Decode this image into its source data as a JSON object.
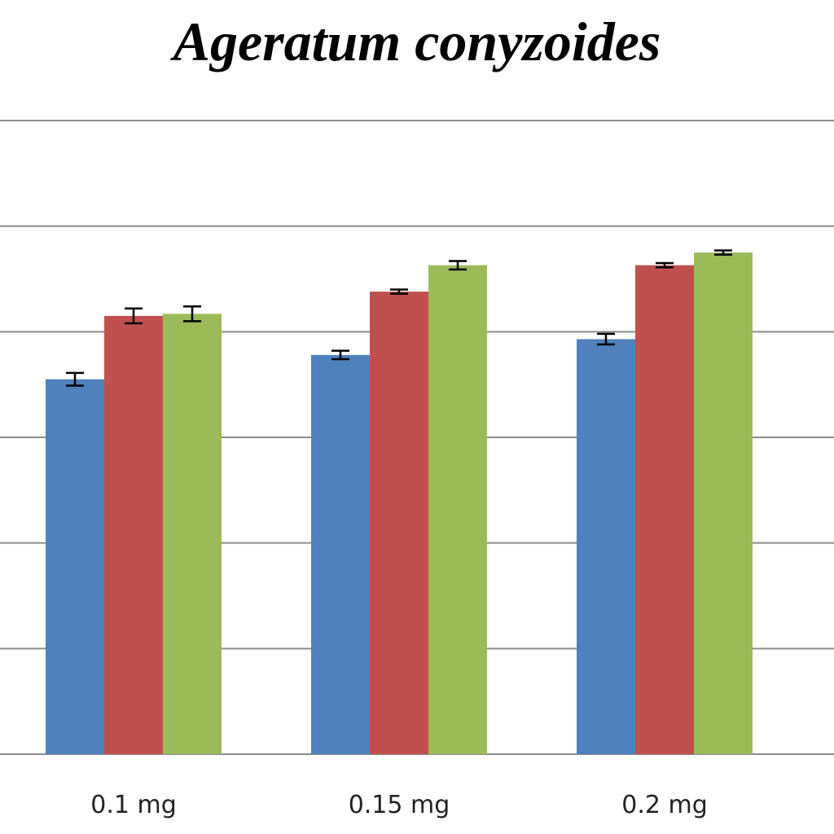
{
  "chart_data": {
    "type": "bar",
    "title": "Ageratum conyzoides",
    "xlabel": "",
    "ylabel": "",
    "categories": [
      "0.1 mg",
      "0.15 mg",
      "0.2 mg"
    ],
    "series": [
      {
        "color": "#4f81bd",
        "values": [
          3.55,
          3.78,
          3.93
        ],
        "errors": [
          0.06,
          0.04,
          0.05
        ]
      },
      {
        "color": "#c0504d",
        "values": [
          4.15,
          4.38,
          4.63
        ],
        "errors": [
          0.07,
          0.02,
          0.02
        ]
      },
      {
        "color": "#9bbb59",
        "values": [
          4.17,
          4.63,
          4.75
        ],
        "errors": [
          0.07,
          0.04,
          0.02
        ]
      }
    ],
    "ylim": [
      0,
      6
    ],
    "grid": true,
    "legend": "none"
  }
}
